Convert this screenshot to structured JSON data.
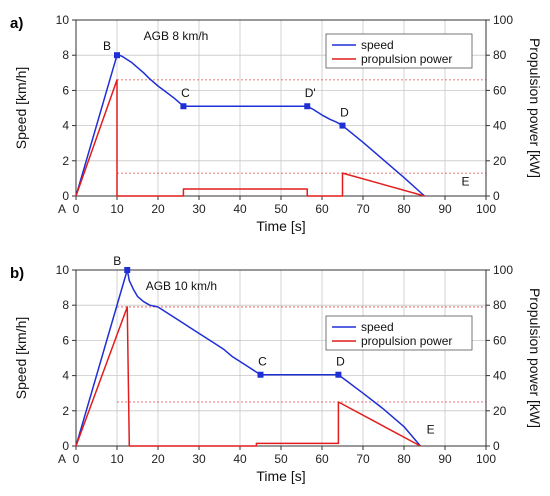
{
  "figure": {
    "accent_speed": "#1f2fd6",
    "accent_power": "#e21d1d",
    "grid_color": "#c8c8c8"
  },
  "chart_data": [
    {
      "panel": "a)",
      "type": "line",
      "annotation": "AGB 8 km/h",
      "xlabel": "Time [s]",
      "ylabel_left": "Speed [km/h]",
      "ylabel_right": "Propulsion power [kW]",
      "xlim": [
        0,
        100
      ],
      "ylim_left": [
        0,
        10
      ],
      "ylim_right": [
        0,
        100
      ],
      "xticks": [
        "0",
        "10",
        "20",
        "30",
        "40",
        "50",
        "60",
        "70",
        "80",
        "90",
        "100"
      ],
      "yticks_left": [
        "0",
        "2",
        "4",
        "6",
        "8",
        "10"
      ],
      "yticks_right": [
        "0",
        "20",
        "40",
        "60",
        "80",
        "100"
      ],
      "x_origin_label": "A",
      "legend": {
        "placement": "top-right",
        "entries": [
          "speed",
          "propulsion power"
        ]
      },
      "series": [
        {
          "name": "speed",
          "axis": "left",
          "x": [
            0,
            10,
            10.6,
            11.5,
            12.5,
            13.5,
            15,
            16.5,
            18,
            20,
            22,
            24,
            26.2,
            30,
            40,
            50,
            56.4,
            58,
            60,
            62,
            63.5,
            65,
            70,
            75,
            80,
            85
          ],
          "y": [
            0,
            8.0,
            8.0,
            7.9,
            7.75,
            7.6,
            7.3,
            7.0,
            6.65,
            6.25,
            5.9,
            5.55,
            5.1,
            5.1,
            5.1,
            5.1,
            5.1,
            4.9,
            4.6,
            4.35,
            4.2,
            4.0,
            3.05,
            2.05,
            1.05,
            0
          ]
        },
        {
          "name": "propulsion power",
          "axis": "right",
          "x": [
            0,
            10,
            10,
            26.2,
            26.2,
            56.4,
            56.4,
            65,
            65,
            85
          ],
          "y": [
            0,
            66,
            0,
            0,
            4,
            4,
            0,
            0,
            13,
            0
          ]
        }
      ],
      "markers": [
        {
          "label": "B",
          "x": 10,
          "y": 8.0
        },
        {
          "label": "C",
          "x": 26.2,
          "y": 5.1
        },
        {
          "label": "D'",
          "x": 56.4,
          "y": 5.1
        },
        {
          "label": "D",
          "x": 65,
          "y": 4.0
        }
      ],
      "end_label": {
        "label": "E",
        "x": 95,
        "y": 0.6
      },
      "reference_lines_right": [
        66,
        13
      ]
    },
    {
      "panel": "b)",
      "type": "line",
      "annotation": "AGB 10 km/h",
      "xlabel": "Time [s]",
      "ylabel_left": "Speed [km/h]",
      "ylabel_right": "Propulsion power [kW]",
      "xlim": [
        0,
        100
      ],
      "ylim_left": [
        0,
        10
      ],
      "ylim_right": [
        0,
        100
      ],
      "xticks": [
        "0",
        "10",
        "20",
        "30",
        "40",
        "50",
        "60",
        "70",
        "80",
        "90",
        "100"
      ],
      "yticks_left": [
        "0",
        "2",
        "4",
        "6",
        "8",
        "10"
      ],
      "yticks_right": [
        "0",
        "20",
        "40",
        "60",
        "80",
        "100"
      ],
      "x_origin_label": "A",
      "legend": {
        "placement": "right",
        "entries": [
          "speed",
          "propulsion power"
        ]
      },
      "series": [
        {
          "name": "speed",
          "axis": "left",
          "x": [
            0,
            12.5,
            13,
            14,
            15,
            16.5,
            18,
            20,
            22,
            24,
            26,
            28,
            30,
            32,
            34,
            36,
            38,
            40,
            42,
            44,
            45,
            50,
            55,
            60,
            64,
            70,
            75,
            80,
            84
          ],
          "y": [
            0,
            10.0,
            9.4,
            8.9,
            8.5,
            8.2,
            8.0,
            7.9,
            7.6,
            7.3,
            7.0,
            6.7,
            6.4,
            6.1,
            5.8,
            5.5,
            5.1,
            4.8,
            4.5,
            4.2,
            4.05,
            4.05,
            4.05,
            4.05,
            4.05,
            3.0,
            2.1,
            1.1,
            0
          ]
        },
        {
          "name": "propulsion power",
          "axis": "right",
          "x": [
            0,
            12.5,
            13,
            13,
            44,
            44,
            64,
            64,
            84
          ],
          "y": [
            0,
            79,
            0,
            0,
            0,
            1.5,
            1.5,
            25,
            0
          ]
        }
      ],
      "markers": [
        {
          "label": "B",
          "x": 12.5,
          "y": 10.0
        },
        {
          "label": "C",
          "x": 45,
          "y": 4.05
        },
        {
          "label": "D",
          "x": 64,
          "y": 4.05
        }
      ],
      "end_label": {
        "label": "E",
        "x": 86.5,
        "y": 0.7
      },
      "reference_lines_right": [
        79,
        25
      ]
    }
  ]
}
